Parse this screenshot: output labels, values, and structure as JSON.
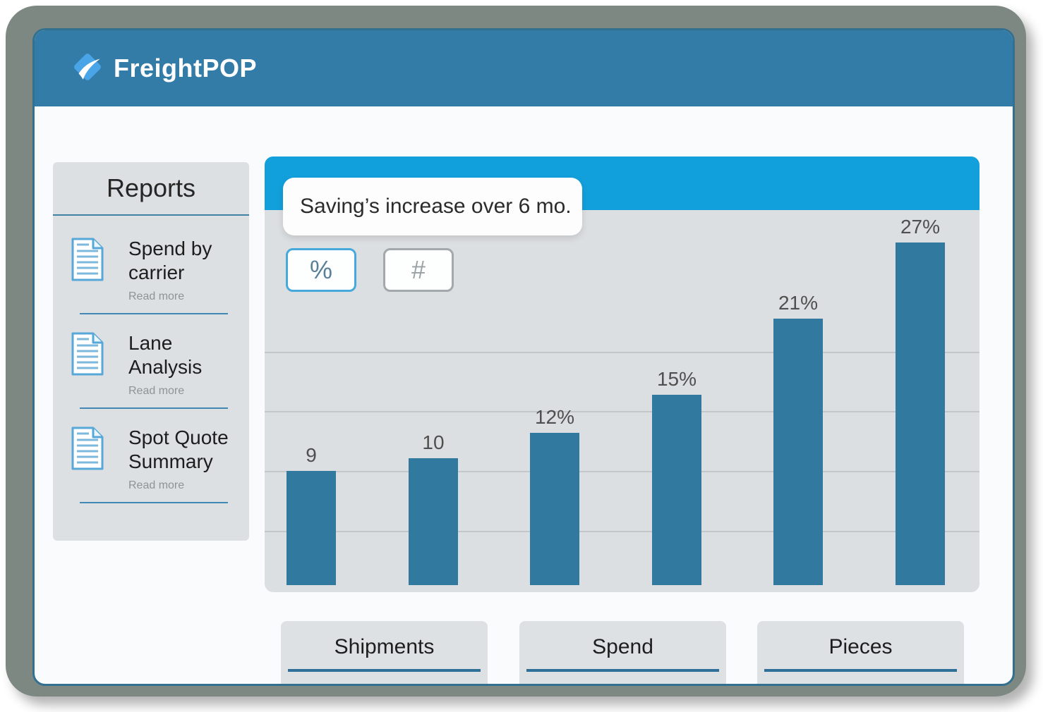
{
  "header": {
    "logo_text": "FreightPOP"
  },
  "sidebar": {
    "title": "Reports",
    "items": [
      {
        "label": "Spend by carrier",
        "read_more": "Read more"
      },
      {
        "label": "Lane Analysis",
        "read_more": "Read more"
      },
      {
        "label": "Spot Quote Summary",
        "read_more": "Read more"
      }
    ]
  },
  "chart_panel": {
    "percent_toggle": "%",
    "number_toggle": "#"
  },
  "chart_data": {
    "type": "bar",
    "title": "Saving’s increase over 6 mo.",
    "x_tick_labels": [],
    "values": [
      9,
      10,
      12,
      15,
      21,
      27
    ],
    "display_labels": [
      "9",
      "10",
      "12%",
      "15%",
      "21%",
      "27%"
    ],
    "ylabel": "",
    "xlabel": "",
    "ylim": [
      0,
      30
    ],
    "grid": true,
    "legend": false,
    "bar_color": "#32799f"
  },
  "bottom_tabs": [
    {
      "label": "Shipments"
    },
    {
      "label": "Spend"
    },
    {
      "label": "Pieces"
    }
  ],
  "colors": {
    "header_blue": "#337ca8",
    "panel_header_blue": "#12a0dc",
    "bar_blue": "#32799f",
    "accent_underline": "#2e7097",
    "frame_gray": "#7d8883",
    "logo_blue": "#4aa4e8",
    "sidebar_bg": "#dce0e2",
    "chart_bg": "#dcdfe1"
  }
}
